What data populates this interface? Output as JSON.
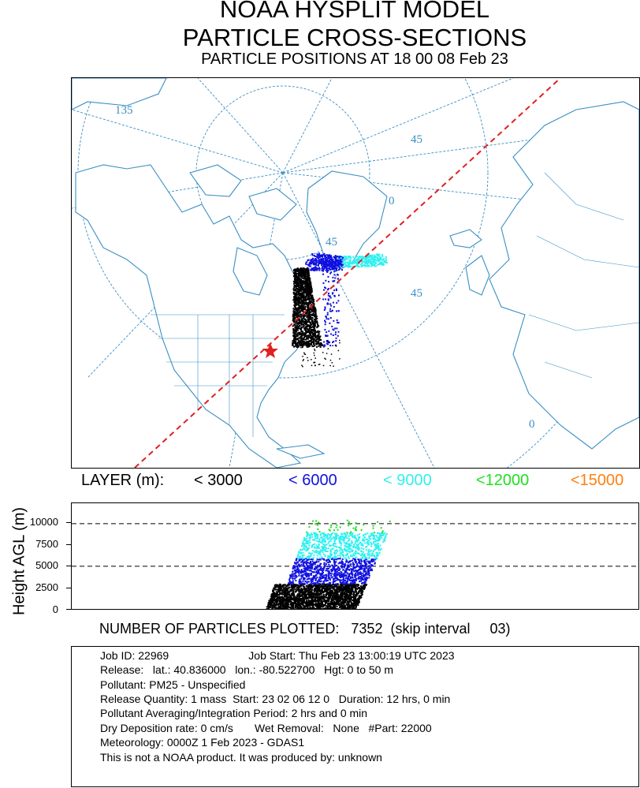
{
  "header": {
    "title1": "NOAA HYSPLIT MODEL",
    "title2": "PARTICLE CROSS-SECTIONS",
    "title3": "PARTICLE POSITIONS AT 18 00  08 Feb 23"
  },
  "map": {
    "grid_labels": [
      "135",
      "45",
      "0",
      "45",
      "45",
      "0"
    ],
    "colors": {
      "coast": "#3a8fc4",
      "graticule": "#3a8fc4",
      "track": "#e02020",
      "source": "#e02020"
    },
    "source_marker": "star-icon",
    "plume_summary": "particle cloud from release site drifting northeast toward Labrador Sea"
  },
  "legend": {
    "title": "LAYER (m):",
    "layers": [
      {
        "label": "< 3000",
        "color": "#000000"
      },
      {
        "label": "< 6000",
        "color": "#1010e0"
      },
      {
        "label": "< 9000",
        "color": "#30f0f0"
      },
      {
        "label": "<12000",
        "color": "#20e020"
      },
      {
        "label": "<15000",
        "color": "#ff7f10"
      }
    ]
  },
  "cross_section": {
    "ylabel": "Height AGL (m)",
    "yticks": [
      "10000",
      "7500",
      "5000",
      "2500",
      "0"
    ],
    "ylim": [
      0,
      11000
    ],
    "dashed_levels": [
      10000,
      5000
    ]
  },
  "chart_data": {
    "type": "scatter",
    "title": "PARTICLE CROSS-SECTIONS",
    "xlabel": "",
    "ylabel": "Height AGL (m)",
    "ylim": [
      0,
      11000
    ],
    "yticks": [
      0,
      2500,
      5000,
      7500,
      10000
    ],
    "grid": false,
    "reference_lines": [
      5000,
      10000
    ],
    "series": [
      {
        "name": "< 3000",
        "color": "#000000",
        "height_range": [
          0,
          3000
        ]
      },
      {
        "name": "< 6000",
        "color": "#1010e0",
        "height_range": [
          3000,
          6000
        ]
      },
      {
        "name": "< 9000",
        "color": "#30f0f0",
        "height_range": [
          6000,
          9000
        ]
      },
      {
        "name": "<12000",
        "color": "#20e020",
        "height_range": [
          9000,
          10500
        ]
      }
    ]
  },
  "summary": {
    "count_label": "NUMBER OF PARTICLES PLOTTED:",
    "count_value": "7352",
    "skip_label": "(skip interval",
    "skip_value": "03)"
  },
  "info": {
    "lines": [
      "Job ID: 22969                          Job Start: Thu Feb 23 13:00:19 UTC 2023",
      "Release:   lat.: 40.836000   lon.: -80.522700   Hgt: 0 to 50 m",
      "Pollutant: PM25 - Unspecified",
      "Release Quantity: 1 mass  Start: 23 02 06 12 0   Duration: 12 hrs, 0 min",
      "Pollutant Averaging/Integration Period: 2 hrs and 0 min",
      "Dry Deposition rate: 0 cm/s       Wet Removal:   None   #Part: 22000",
      "Meteorology: 0000Z 1 Feb 2023 - GDAS1",
      "This is not a NOAA product. It was produced by: unknown"
    ]
  }
}
